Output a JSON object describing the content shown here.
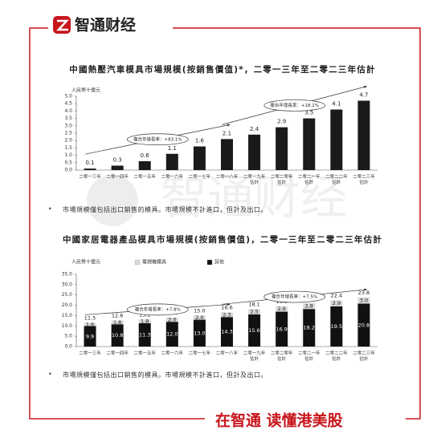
{
  "header": {
    "brand": "智通财经"
  },
  "watermark": "智通财经",
  "notes": [
    "市場規模僅包括出口銷售的模具。市場規模不計進口，但計及出口。",
    "市場規模僅包括出口銷售的模具。市場規模不計進口，但計及出口。"
  ],
  "bullet": "•",
  "footer": "在智通 读懂港美股",
  "chart_data": [
    {
      "type": "bar",
      "title": "中國熱壓汽車模具市場規模(按銷售價值)*，二零一三年至二零二三年估計",
      "y_label": "人民幣十億元",
      "categories": [
        "二零一三年",
        "二零一四年",
        "二零一五年",
        "二零一六年",
        "二零一七年",
        "二零一八年",
        "二零一九年估計",
        "二零二零年估計",
        "二零二一年估計",
        "二零二二年估計",
        "二零二三年估計"
      ],
      "values": [
        0.1,
        0.3,
        0.6,
        1.1,
        1.6,
        2.1,
        2.4,
        2.9,
        3.5,
        4.1,
        4.7
      ],
      "color": "#1a1a1a",
      "ylim": [
        0,
        5
      ],
      "yticks": [
        {
          "value": 0,
          "label": "0.0"
        },
        0.5,
        {
          "value": 1,
          "label": "1.0"
        },
        1.5,
        {
          "value": 2,
          "label": "2.0"
        },
        2.5,
        {
          "value": 3,
          "label": "3.0"
        },
        3.5,
        {
          "value": 4,
          "label": "4.0"
        },
        4.5,
        {
          "value": 5,
          "label": "5.0"
        }
      ],
      "annotations": [
        "複合年增長率：+83.1%",
        "複合年增長率：+18.1%"
      ]
    },
    {
      "type": "stacked_bar",
      "title": "中國家居電器產品模具市場規模(按銷售價值)，二零一三年至二零二三年估計",
      "y_label": "人民幣十億元",
      "categories": [
        "二零一三年",
        "二零一四年",
        "二零一五年",
        "二零一六年",
        "二零一七年",
        "二零一八年",
        "二零一九年估計",
        "二零二零年估計",
        "二零二一年估計",
        "二零二二年估計",
        "二零二三年估計"
      ],
      "series": [
        {
          "name": "其他",
          "color": "#111111",
          "values": [
            9.9,
            10.8,
            11.3,
            12.0,
            13.0,
            14.3,
            15.6,
            16.9,
            18.2,
            19.5,
            20.8
          ],
          "value_labels": [
            "9.9",
            "10.8",
            "11.3",
            "12.0",
            "13.0",
            "14.3",
            "15.6",
            "16.9",
            "18.2",
            "19.5",
            "20.8"
          ]
        },
        {
          "name": "電視機模具",
          "color": "#d9d9d9",
          "values": [
            1.6,
            1.8,
            1.8,
            2.0,
            2.0,
            2.3,
            2.5,
            2.6,
            2.8,
            2.9,
            3.0
          ],
          "value_labels": [
            "1.6",
            "1.8",
            "1.8",
            "2.0",
            "2.0",
            "2.3",
            "2.5",
            "2.6",
            "2.8",
            "2.9",
            "3.0"
          ]
        }
      ],
      "totals": [
        11.5,
        12.6,
        13.1,
        14.0,
        15.0,
        16.6,
        18.1,
        19.5,
        21.0,
        22.4,
        23.8
      ],
      "total_labels": [
        "11.5",
        "12.6",
        "13.1",
        "14.0",
        "15.0",
        "16.6",
        "18.1",
        "19.5",
        "21.0",
        "22.4",
        "23.8"
      ],
      "ylim": [
        0,
        35
      ],
      "yticks": [
        {
          "value": 0,
          "label": "0.0"
        },
        {
          "value": 5,
          "label": "5.0"
        },
        {
          "value": 10,
          "label": "10.0"
        },
        {
          "value": 15,
          "label": "15.0"
        },
        {
          "value": 20,
          "label": "20.0"
        },
        {
          "value": 25,
          "label": "25.0"
        },
        {
          "value": 30,
          "label": "30.0"
        },
        {
          "value": 35,
          "label": "35.0"
        }
      ],
      "annotations": [
        "複合年增長率：+7.8%",
        "複合年增長率：+7.5%"
      ]
    }
  ]
}
